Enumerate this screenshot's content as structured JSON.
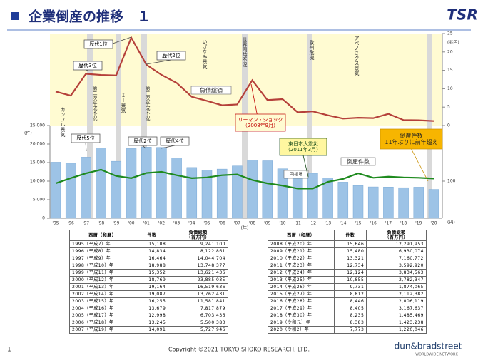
{
  "header": {
    "title": "企業倒産の推移　１",
    "logo": "TSR"
  },
  "chart_data": {
    "type": "bar",
    "categories": [
      "'95",
      "'96",
      "'97",
      "'98",
      "'99",
      "'00",
      "'01",
      "'02",
      "'03",
      "'04",
      "'05",
      "'06",
      "'07",
      "'08",
      "'09",
      "'10",
      "'11",
      "'12",
      "'13",
      "'14",
      "'15",
      "'16",
      "'17",
      "'18",
      "'19",
      "'20"
    ],
    "x_label": "(年)",
    "series": [
      {
        "name": "倒産件数",
        "type": "bar",
        "color": "#9dc3e6",
        "values": [
          15108,
          14834,
          16464,
          18988,
          15352,
          18769,
          19164,
          19087,
          16255,
          13679,
          12998,
          13245,
          14091,
          15646,
          15480,
          13321,
          12734,
          12124,
          10855,
          9731,
          8812,
          8446,
          8405,
          8235,
          8383,
          7773
        ]
      },
      {
        "name": "負債総額",
        "type": "line",
        "axis": "y2",
        "color": "#b5403a",
        "values": [
          9.2411,
          8.122861,
          14.044704,
          13.748377,
          13.621436,
          23.885035,
          16.519636,
          13.762431,
          11.581841,
          7.817879,
          6.703436,
          5.500383,
          5.727946,
          12.291953,
          6.930074,
          7.160772,
          3.59292,
          3.834563,
          2.782347,
          1.874065,
          2.112382,
          2.006119,
          3.167637,
          1.485469,
          1.423238,
          1.220046
        ]
      },
      {
        "name": "円相場",
        "type": "line",
        "axis": "y3",
        "color": "#1e8a1e",
        "values": [
          94,
          108,
          121,
          131,
          114,
          108,
          122,
          125,
          116,
          108,
          110,
          116,
          118,
          103,
          94,
          88,
          80,
          80,
          98,
          106,
          121,
          109,
          112,
          110,
          109,
          107
        ]
      }
    ],
    "ylim": [
      0,
      25000
    ],
    "yticks": [
      0,
      {
        "value": 5000,
        "label": "5,000"
      },
      {
        "value": 10000,
        "label": "10,000"
      },
      {
        "value": 15000,
        "label": "15,000"
      },
      {
        "value": 20000,
        "label": "20,000"
      },
      {
        "value": 25000,
        "label": "25,000"
      }
    ],
    "y_label": "(件)",
    "y2lim": [
      0,
      25
    ],
    "y2ticks": [
      0,
      5,
      10,
      15,
      20,
      25
    ],
    "y2_label": "(兆円)",
    "y3lim": [
      0,
      250
    ],
    "y3ticks": [
      100
    ],
    "y3_label": "(円)",
    "periods": [
      "カンフル景気",
      "第二次平成不況",
      "ＩＴ景気",
      "第三次平成不況",
      "いざなみ景気",
      "世界同時不況",
      "欧州危機",
      "アベノミクス景気"
    ],
    "annotations": [
      {
        "lines": [
          "歴代1位"
        ]
      },
      {
        "lines": [
          "歴代3位"
        ]
      },
      {
        "lines": [
          "歴代2位"
        ]
      },
      {
        "lines": [
          "歴代5位"
        ]
      },
      {
        "lines": [
          "歴代2位"
        ]
      },
      {
        "lines": [
          "歴代4位"
        ]
      },
      {
        "lines": [
          "リーマン・ショック",
          "（2008年9月）"
        ]
      },
      {
        "lines": [
          "東日本大震災",
          "（2011年3月）"
        ]
      },
      {
        "lines": [
          "倒産件数",
          "11年ぶりに前年超え"
        ]
      }
    ]
  },
  "table": {
    "header": [
      "西暦（和暦）",
      "件数",
      [
        "負債総額",
        "（百万円）"
      ]
    ],
    "left": [
      [
        "1995（平成7）年",
        "15,108",
        "9,241,100"
      ],
      [
        "1996（平成8）年",
        "14,834",
        "8,122,861"
      ],
      [
        "1997（平成9）年",
        "16,464",
        "14,044,704"
      ],
      [
        "1998（平成10）年",
        "18,988",
        "13,748,377"
      ],
      [
        "1999（平成11）年",
        "15,352",
        "13,621,436"
      ],
      [
        "2000（平成12）年",
        "18,769",
        "23,885,035"
      ],
      [
        "2001（平成13）年",
        "19,164",
        "16,519,636"
      ],
      [
        "2002（平成14）年",
        "19,087",
        "13,762,431"
      ],
      [
        "2003（平成15）年",
        "16,255",
        "11,581,841"
      ],
      [
        "2004（平成16）年",
        "13,679",
        "7,817,879"
      ],
      [
        "2005（平成17）年",
        "12,998",
        "6,703,436"
      ],
      [
        "2006（平成18）年",
        "13,245",
        "5,500,383"
      ],
      [
        "2007（平成19）年",
        "14,091",
        "5,727,946"
      ]
    ],
    "right": [
      [
        "2008（平成20）年",
        "15,646",
        "12,291,953"
      ],
      [
        "2009（平成21）年",
        "15,480",
        "6,930,074"
      ],
      [
        "2010（平成22）年",
        "13,321",
        "7,160,772"
      ],
      [
        "2011（平成23）年",
        "12,734",
        "3,592,920"
      ],
      [
        "2012（平成24）年",
        "12,124",
        "3,834,563"
      ],
      [
        "2013（平成25）年",
        "10,855",
        "2,782,347"
      ],
      [
        "2014（平成26）年",
        "9,731",
        "1,874,065"
      ],
      [
        "2015（平成27）年",
        "8,812",
        "2,112,382"
      ],
      [
        "2016（平成28）年",
        "8,446",
        "2,006,119"
      ],
      [
        "2017（平成29）年",
        "8,405",
        "3,167,637"
      ],
      [
        "2018（平成30）年",
        "8,235",
        "1,485,469"
      ],
      [
        "2019（令和元）年",
        "8,383",
        "1,423,238"
      ],
      [
        "2020（令和2）年",
        "7,773",
        "1,220,046"
      ]
    ]
  },
  "footer": {
    "page": "1",
    "copyright": "Copyright ©2021 TOKYO SHOKO RESEARCH, LTD.",
    "brand": "dun&bradstreet",
    "brand_sub": "WORLDWIDE NETWORK"
  }
}
